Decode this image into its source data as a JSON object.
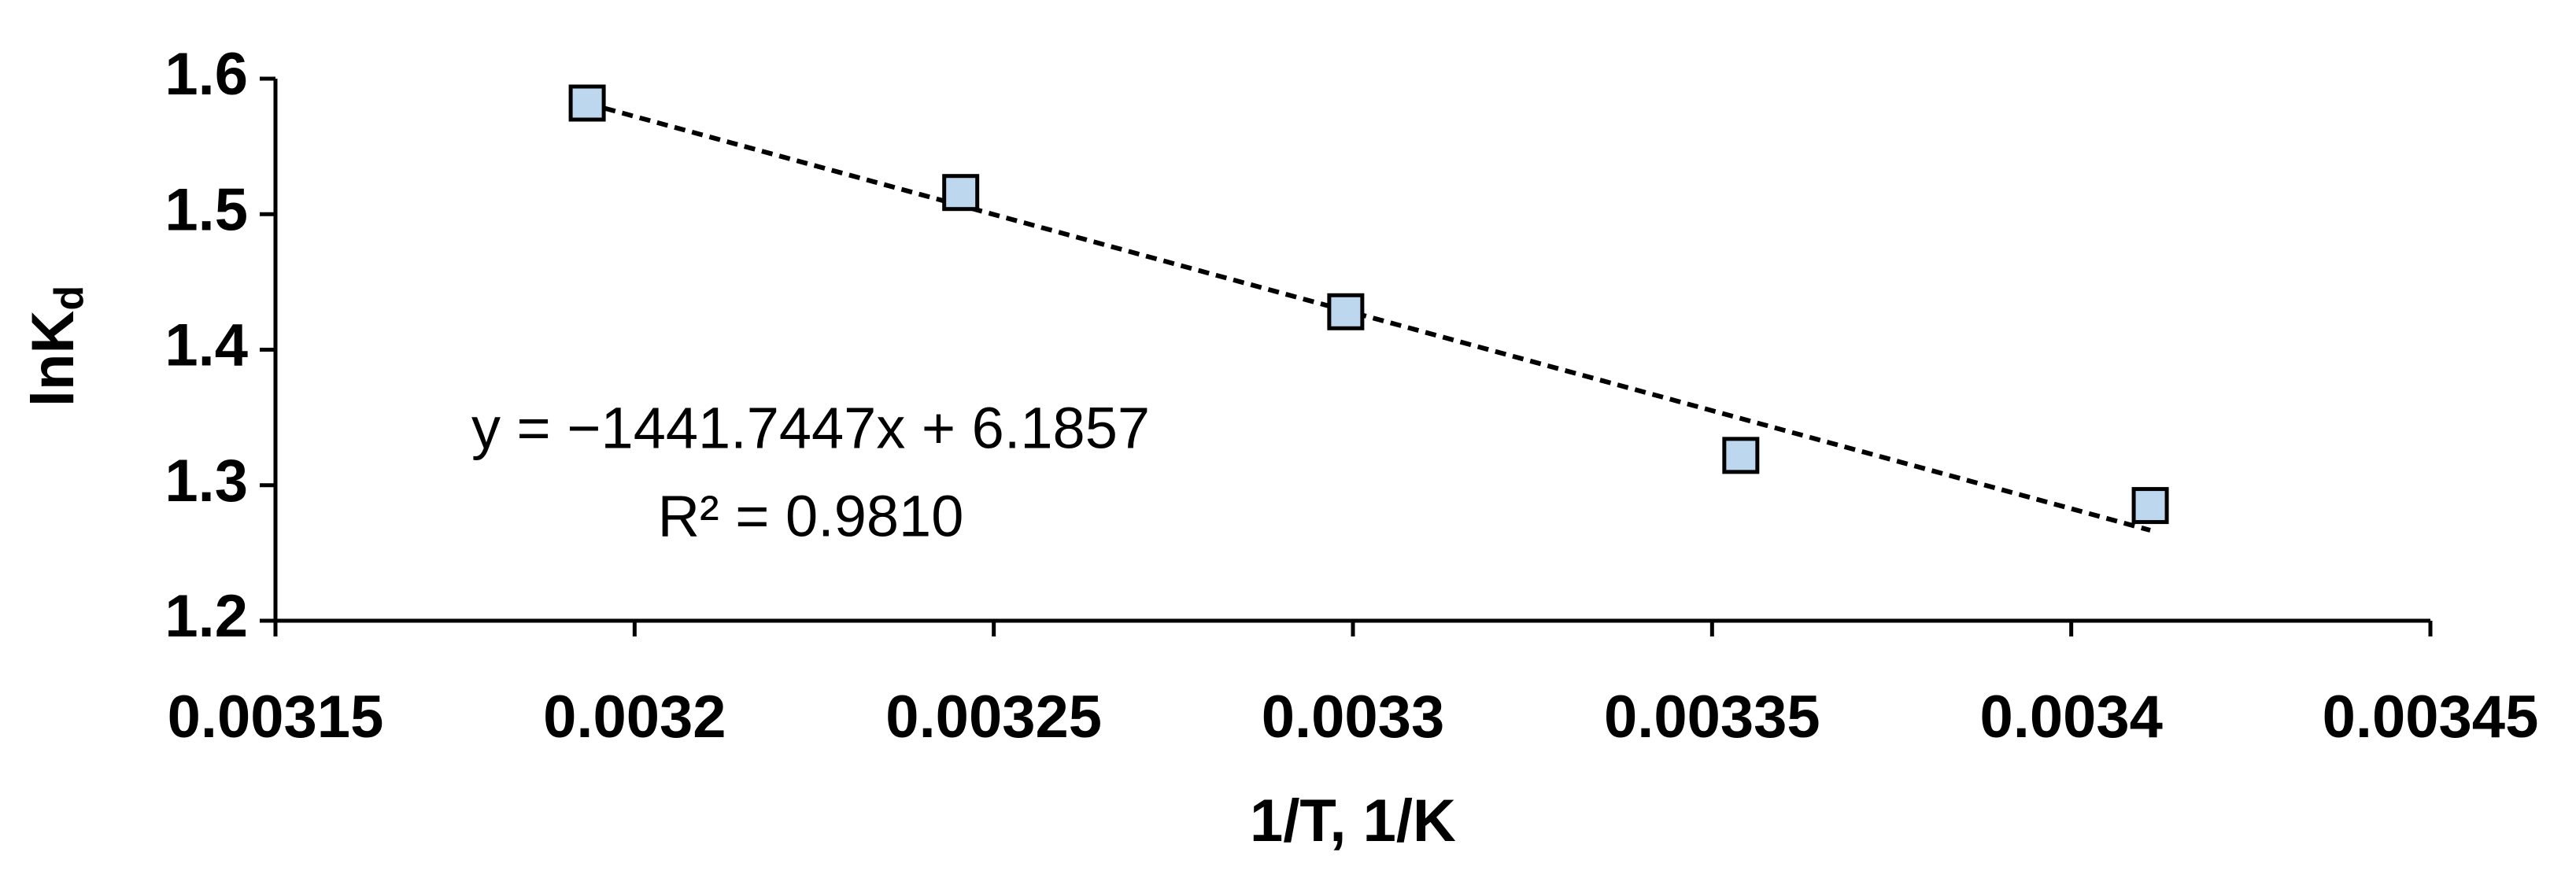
{
  "chart_data": {
    "type": "scatter",
    "xlabel": "1/T, 1/K",
    "ylabel": "lnK",
    "ylabel_subscript": "d",
    "x": [
      0.0031934,
      0.0032454,
      0.003299,
      0.003354,
      0.003411
    ],
    "values": [
      1.582,
      1.516,
      1.428,
      1.322,
      1.285
    ],
    "color": "#bdd7ee",
    "trendline": true,
    "equation": "y = −1441.7447x + 6.1857",
    "r_squared": "R² = 0.9810",
    "xlim": [
      0.00315,
      0.00345
    ],
    "xticks": [
      0.00315,
      0.0032,
      0.00325,
      0.0033,
      0.00335,
      0.0034,
      0.00345
    ],
    "ylim": [
      1.2,
      1.6
    ],
    "yticks": [
      1.2,
      1.3,
      1.4,
      1.5,
      1.6
    ],
    "grid": false
  }
}
